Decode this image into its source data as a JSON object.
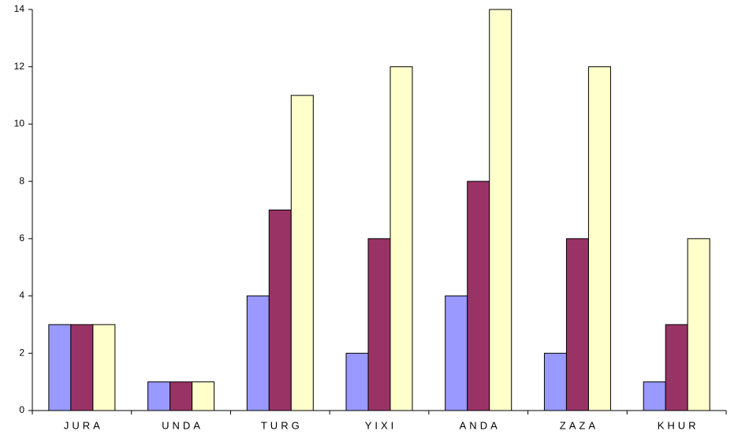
{
  "chart_data": {
    "type": "bar",
    "categories": [
      "JURA",
      "UNDA",
      "TURG",
      "YIXI",
      "ANDA",
      "ZAZA",
      "KHUR"
    ],
    "series": [
      {
        "color": "#9999ff",
        "values": [
          3,
          1,
          4,
          2,
          4,
          2,
          1
        ]
      },
      {
        "color": "#993366",
        "values": [
          3,
          1,
          7,
          6,
          8,
          6,
          3
        ]
      },
      {
        "color": "#ffffcc",
        "values": [
          3,
          1,
          11,
          12,
          14,
          12,
          6
        ]
      }
    ],
    "ylim": [
      0,
      14
    ],
    "yticks": [
      0,
      2,
      4,
      6,
      8,
      10,
      12,
      14
    ],
    "grid": false
  }
}
